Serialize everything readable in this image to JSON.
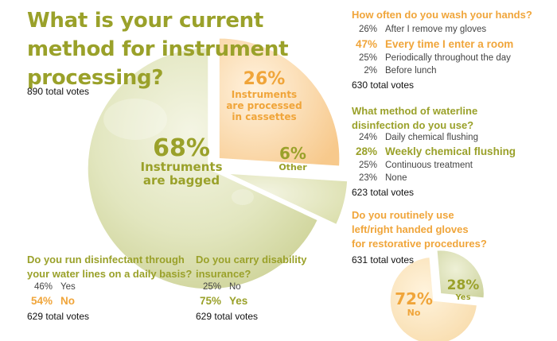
{
  "main_poll": {
    "question": "What is your current method for instrument processing?",
    "total_votes": "890 total votes",
    "slices": [
      {
        "pct": "68%",
        "label_line1": "Instruments",
        "label_line2": "are bagged"
      },
      {
        "pct": "26%",
        "label_line1": "Instruments",
        "label_line2": "are processed",
        "label_line3": "in cassettes"
      },
      {
        "pct": "6%",
        "label_line1": "Other"
      }
    ]
  },
  "wash_hands": {
    "question": "How often do you wash your hands?",
    "rows": [
      {
        "pct": "26%",
        "text": "After I remove my gloves"
      },
      {
        "pct": "47%",
        "text": "Every time I enter a room"
      },
      {
        "pct": "25%",
        "text": "Periodically throughout the day"
      },
      {
        "pct": "2%",
        "text": "Before lunch"
      }
    ],
    "total_votes": "630 total votes"
  },
  "waterline": {
    "question_line1": "What method of waterline",
    "question_line2": "disinfection do you use?",
    "rows": [
      {
        "pct": "24%",
        "text": "Daily chemical flushing"
      },
      {
        "pct": "28%",
        "text": "Weekly chemical flushing"
      },
      {
        "pct": "25%",
        "text": "Continuous treatment"
      },
      {
        "pct": "23%",
        "text": "None"
      }
    ],
    "total_votes": "623 total votes"
  },
  "gloves": {
    "question_line1": "Do you routinely use",
    "question_line2": "left/right handed gloves",
    "question_line3": "for restorative procedures?",
    "total_votes": "631 total votes",
    "slices": [
      {
        "pct": "72%",
        "label": "No"
      },
      {
        "pct": "28%",
        "label": "Yes"
      }
    ]
  },
  "disinfectant": {
    "question_line1": "Do you run disinfectant through",
    "question_line2": "your water lines on a daily basis?",
    "rows": [
      {
        "pct": "46%",
        "text": "Yes"
      },
      {
        "pct": "54%",
        "text": "No"
      }
    ],
    "total_votes": "629 total votes"
  },
  "insurance": {
    "question_line1": "Do you carry disability",
    "question_line2": "insurance?",
    "rows": [
      {
        "pct": "25%",
        "text": "No"
      },
      {
        "pct": "75%",
        "text": "Yes"
      }
    ],
    "total_votes": "629 total votes"
  },
  "colors": {
    "olive": "#9aa12a",
    "orange": "#f0a53a",
    "pie_green": "#dfe3b6",
    "pie_orange": "#fbd29a",
    "pie_other": "#e9ecc8",
    "pie_cream": "#fbe4b8",
    "pie_lime": "#e2e6bd"
  },
  "chart_data": [
    {
      "type": "pie",
      "title": "What is your current method for instrument processing?",
      "categories": [
        "Instruments are bagged",
        "Instruments are processed in cassettes",
        "Other"
      ],
      "values": [
        68,
        26,
        6
      ]
    },
    {
      "type": "pie",
      "title": "Do you routinely use left/right handed gloves for restorative procedures?",
      "categories": [
        "No",
        "Yes"
      ],
      "values": [
        72,
        28
      ]
    },
    {
      "type": "table",
      "title": "How often do you wash your hands?",
      "categories": [
        "After I remove my gloves",
        "Every time I enter a room",
        "Periodically throughout the day",
        "Before lunch"
      ],
      "values": [
        26,
        47,
        25,
        2
      ]
    },
    {
      "type": "table",
      "title": "What method of waterline disinfection do you use?",
      "categories": [
        "Daily chemical flushing",
        "Weekly chemical flushing",
        "Continuous treatment",
        "None"
      ],
      "values": [
        24,
        28,
        25,
        23
      ]
    },
    {
      "type": "table",
      "title": "Do you run disinfectant through your water lines on a daily basis?",
      "categories": [
        "Yes",
        "No"
      ],
      "values": [
        46,
        54
      ]
    },
    {
      "type": "table",
      "title": "Do you carry disability insurance?",
      "categories": [
        "No",
        "Yes"
      ],
      "values": [
        25,
        75
      ]
    }
  ]
}
